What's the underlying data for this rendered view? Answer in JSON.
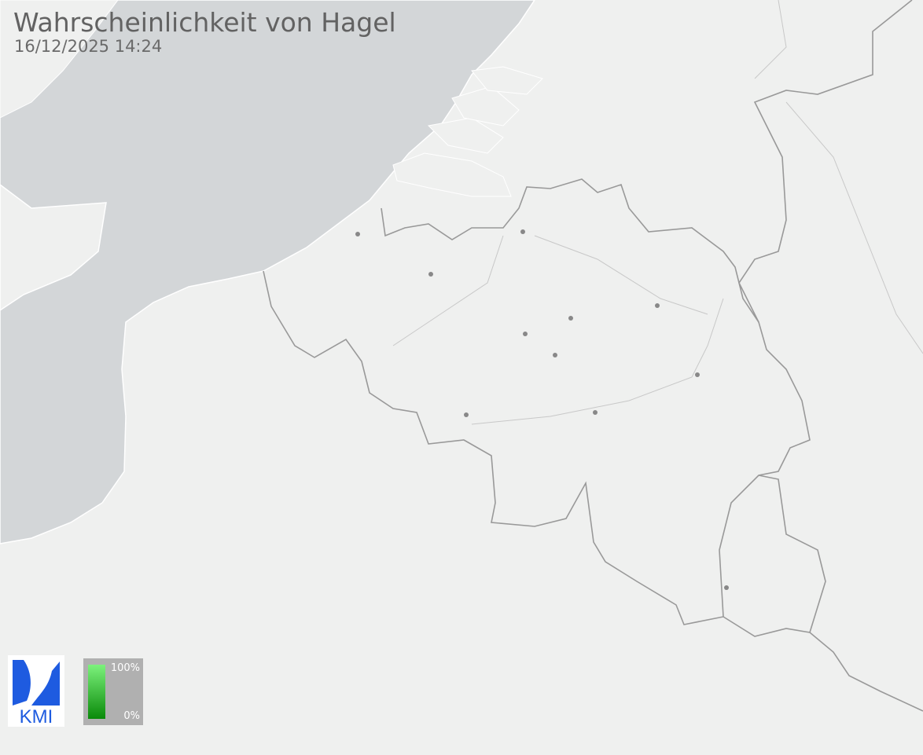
{
  "header": {
    "title": "Wahrscheinlichkeit von Hagel",
    "timestamp": "16/12/2025 14:24"
  },
  "logo": {
    "text": "KMI",
    "color": "#1e5be0"
  },
  "legend": {
    "max_label": "100%",
    "min_label": "0%",
    "color_top": "#7cf27c",
    "color_bottom": "#0a8a0a"
  },
  "colors": {
    "land": "#eff0ef",
    "sea": "#d3d6d8",
    "border": "#999999"
  }
}
